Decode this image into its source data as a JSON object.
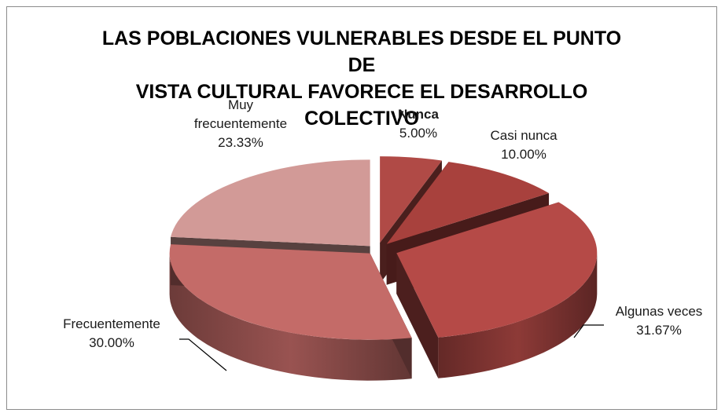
{
  "chart_data": {
    "type": "pie",
    "style": "3d-exploded",
    "title_lines": [
      "LAS POBLACIONES VULNERABLES DESDE EL PUNTO DE",
      "VISTA CULTURAL FAVORECE EL DESARROLLO COLECTIVO"
    ],
    "slices": [
      {
        "label_lines": [
          "Nunca"
        ],
        "value": 5.0,
        "value_label": "5.00%",
        "color": "#b04a46"
      },
      {
        "label_lines": [
          "Casi nunca"
        ],
        "value": 10.0,
        "value_label": "10.00%",
        "color": "#a8413d"
      },
      {
        "label_lines": [
          "Algunas veces"
        ],
        "value": 31.67,
        "value_label": "31.67%",
        "color": "#b54a47"
      },
      {
        "label_lines": [
          "Frecuentemente"
        ],
        "value": 30.0,
        "value_label": "30.00%",
        "color": "#c46b68"
      },
      {
        "label_lines": [
          "Muy",
          "frecuentemente"
        ],
        "value": 23.33,
        "value_label": "23.33%",
        "color": "#d29a97"
      }
    ],
    "legend": "none",
    "start_angle_deg": 0,
    "direction": "clockwise"
  }
}
